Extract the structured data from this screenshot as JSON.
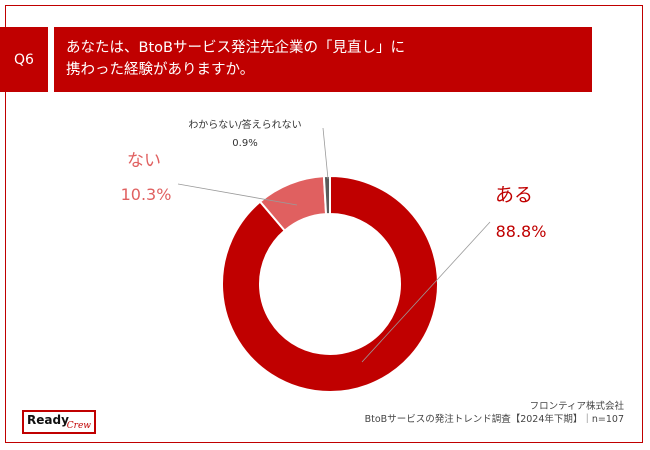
{
  "header": {
    "badge": "Q6",
    "title_line1": "あなたは、BtoBサービス発注先企業の「見直し」に",
    "title_line2": "携わった経験がありますか。"
  },
  "chart_data": {
    "type": "pie",
    "categories": [
      "ある",
      "ない",
      "わからない/答えられない"
    ],
    "values": [
      88.8,
      10.3,
      0.9
    ],
    "labels": [
      "88.8%",
      "10.3%",
      "0.9%"
    ],
    "colors": [
      "#c00000",
      "#e06060",
      "#5a5a5a"
    ]
  },
  "footer": {
    "company": "フロンティア株式会社",
    "source": "BtoBサービスの発注トレンド調査【2024年下期】｜n=107"
  },
  "logo": {
    "word1": "Ready",
    "word2": "Crew"
  }
}
